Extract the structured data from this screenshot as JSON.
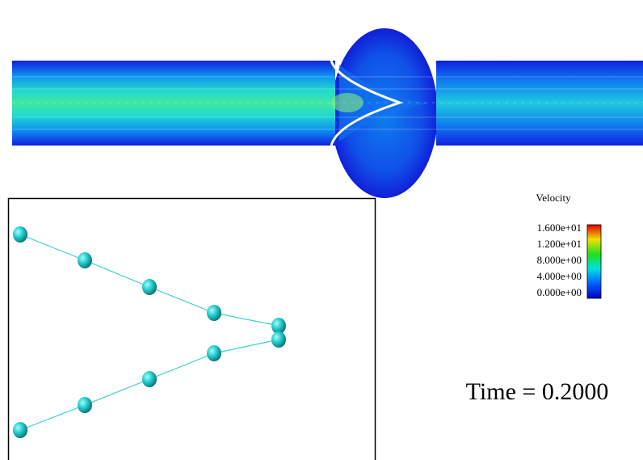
{
  "legend": {
    "title": "Velocity",
    "labels": [
      "1.600e+01",
      "1.200e+01",
      "8.000e+00",
      "4.000e+00",
      "0.000e+00"
    ]
  },
  "time_label": "Time = 0.2000"
}
